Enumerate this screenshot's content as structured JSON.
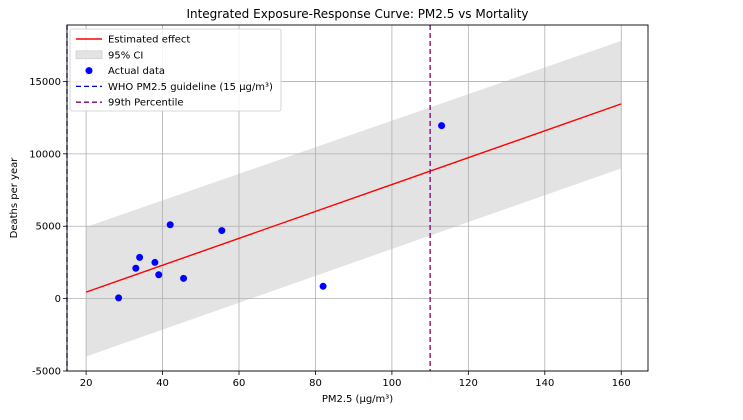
{
  "chart_data": {
    "type": "line",
    "title": "Integrated Exposure-Response Curve: PM2.5 vs Mortality",
    "xlabel": "PM2.5 (µg/m³)",
    "ylabel": "Deaths per year",
    "xlim": [
      15,
      167
    ],
    "ylim": [
      -5000,
      18900
    ],
    "xticks": [
      20,
      40,
      60,
      80,
      100,
      120,
      140,
      160
    ],
    "yticks": [
      -5000,
      0,
      5000,
      10000,
      15000
    ],
    "grid": true,
    "legend_placement": "upper-left",
    "legend": [
      {
        "label": "Estimated effect",
        "kind": "line",
        "color": "#ff0000"
      },
      {
        "label": "95% CI",
        "kind": "patch",
        "color": "#d3d3d3"
      },
      {
        "label": "Actual data",
        "kind": "marker",
        "color": "#0000ff"
      },
      {
        "label": "WHO PM2.5 guideline (15 µg/m³)",
        "kind": "dashed",
        "color": "#0000cc"
      },
      {
        "label": "99th Percentile",
        "kind": "dashed",
        "color": "#800080"
      }
    ],
    "estimated_effect": {
      "x": [
        20,
        160
      ],
      "y": [
        450,
        13450
      ]
    },
    "ci_band": {
      "x": [
        20,
        160
      ],
      "lower": [
        -4000,
        9000
      ],
      "upper": [
        4950,
        17800
      ]
    },
    "actual_data": {
      "x": [
        28.5,
        33,
        34,
        38,
        39,
        42,
        45.5,
        55.5,
        82,
        113
      ],
      "y": [
        50,
        2100,
        2850,
        2500,
        1650,
        5100,
        1400,
        4700,
        850,
        11950
      ]
    },
    "who_guideline_x": 15,
    "percentile_99_x": 110
  }
}
